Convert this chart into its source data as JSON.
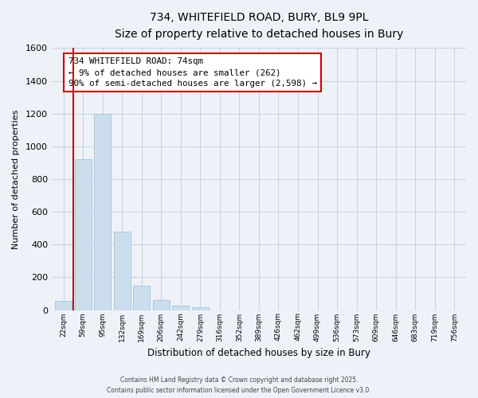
{
  "title_line1": "734, WHITEFIELD ROAD, BURY, BL9 9PL",
  "title_line2": "Size of property relative to detached houses in Bury",
  "xlabel": "Distribution of detached houses by size in Bury",
  "ylabel": "Number of detached properties",
  "bar_labels": [
    "22sqm",
    "59sqm",
    "95sqm",
    "132sqm",
    "169sqm",
    "206sqm",
    "242sqm",
    "279sqm",
    "316sqm",
    "352sqm",
    "389sqm",
    "426sqm",
    "462sqm",
    "499sqm",
    "536sqm",
    "573sqm",
    "609sqm",
    "646sqm",
    "683sqm",
    "719sqm",
    "756sqm"
  ],
  "bar_values": [
    55,
    920,
    1200,
    480,
    150,
    60,
    28,
    15,
    0,
    0,
    0,
    0,
    0,
    0,
    0,
    0,
    0,
    0,
    0,
    0,
    0
  ],
  "bar_color": "#ccdeed",
  "bar_edge_color": "#a0c4dc",
  "grid_color": "#c8d4e4",
  "background_color": "#eef2f8",
  "vline_x": 0.5,
  "vline_color": "#cc0000",
  "annotation_title": "734 WHITEFIELD ROAD: 74sqm",
  "annotation_line1": "← 9% of detached houses are smaller (262)",
  "annotation_line2": "90% of semi-detached houses are larger (2,598) →",
  "annotation_box_color": "#ffffff",
  "annotation_box_edge": "#cc0000",
  "ylim": [
    0,
    1600
  ],
  "yticks": [
    0,
    200,
    400,
    600,
    800,
    1000,
    1200,
    1400,
    1600
  ],
  "footer_line1": "Contains HM Land Registry data © Crown copyright and database right 2025.",
  "footer_line2": "Contains public sector information licensed under the Open Government Licence v3.0."
}
